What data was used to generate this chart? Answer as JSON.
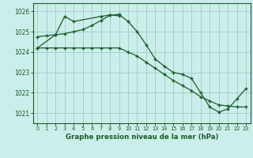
{
  "title": "Graphe pression niveau de la mer (hPa)",
  "bg_color": "#cceeea",
  "grid_color": "#99cccc",
  "line_color": "#1a5c2a",
  "xlim": [
    -0.5,
    23.5
  ],
  "ylim": [
    1020.5,
    1026.4
  ],
  "yticks": [
    1021,
    1022,
    1023,
    1024,
    1025,
    1026
  ],
  "xticks": [
    0,
    1,
    2,
    3,
    4,
    5,
    6,
    7,
    8,
    9,
    10,
    11,
    12,
    13,
    14,
    15,
    16,
    17,
    18,
    19,
    20,
    21,
    22,
    23
  ],
  "series1_x": [
    0,
    1,
    2,
    3,
    4,
    5,
    6,
    7,
    8,
    9,
    10,
    11,
    12,
    13,
    14,
    15,
    16,
    17,
    18,
    19,
    20,
    21,
    22,
    23
  ],
  "series1_y": [
    1024.75,
    1024.8,
    1024.85,
    1024.9,
    1025.0,
    1025.1,
    1025.3,
    1025.55,
    1025.8,
    1025.85,
    1025.5,
    1025.0,
    1024.35,
    1023.65,
    1023.3,
    1023.0,
    1022.9,
    1022.7,
    1022.0,
    1021.3,
    1021.05,
    1021.2,
    1021.7,
    1022.2
  ],
  "series2_x": [
    0,
    1,
    2,
    3,
    4,
    5,
    6,
    7,
    8,
    9,
    10,
    11,
    12,
    13,
    14,
    15,
    16,
    17,
    18,
    19,
    20,
    21,
    22,
    23
  ],
  "series2_y": [
    1024.2,
    1024.2,
    1024.2,
    1024.2,
    1024.2,
    1024.2,
    1024.2,
    1024.2,
    1024.2,
    1024.2,
    1024.0,
    1023.8,
    1023.5,
    1023.2,
    1022.9,
    1022.6,
    1022.35,
    1022.1,
    1021.8,
    1021.6,
    1021.4,
    1021.35,
    1021.3,
    1021.3
  ],
  "series3_x": [
    0,
    2,
    3,
    4,
    7,
    8,
    9
  ],
  "series3_y": [
    1024.2,
    1024.85,
    1025.75,
    1025.5,
    1025.75,
    1025.82,
    1025.78
  ]
}
